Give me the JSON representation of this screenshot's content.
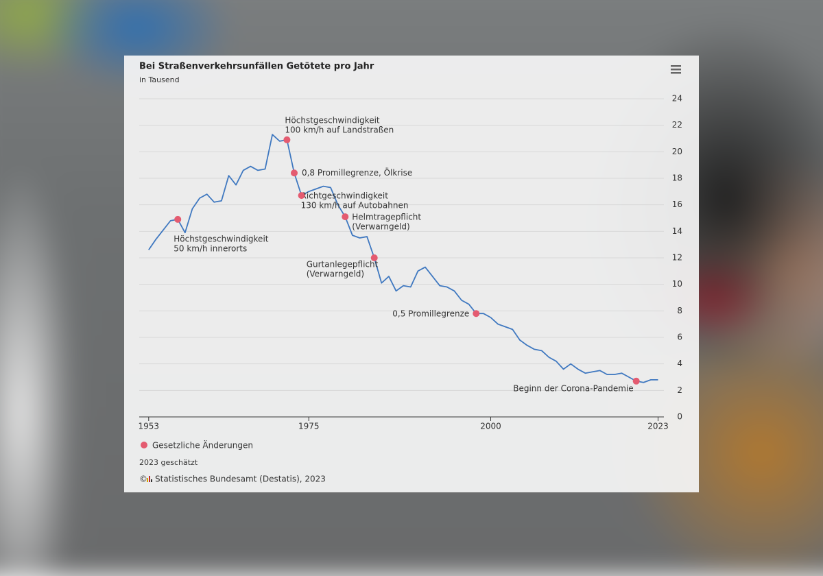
{
  "chart_data": {
    "type": "line",
    "title": "Bei Straßenverkehrsunfällen Getötete pro Jahr",
    "subtitle": "in Tausend",
    "xlim": [
      1951.7,
      2023.8
    ],
    "xticks": [
      1953,
      1975,
      2000,
      2023
    ],
    "ylim": [
      0,
      24
    ],
    "yticks": [
      0,
      2,
      4,
      6,
      8,
      10,
      12,
      14,
      16,
      18,
      20,
      22,
      24
    ],
    "grid": true,
    "series": [
      {
        "color": "#3f78c0",
        "x": [
          1953,
          1954,
          1955,
          1956,
          1957,
          1958,
          1959,
          1960,
          1961,
          1962,
          1963,
          1964,
          1965,
          1966,
          1967,
          1968,
          1969,
          1970,
          1971,
          1972,
          1973,
          1974,
          1975,
          1976,
          1977,
          1978,
          1979,
          1980,
          1981,
          1982,
          1983,
          1984,
          1985,
          1986,
          1987,
          1988,
          1989,
          1990,
          1991,
          1992,
          1993,
          1994,
          1995,
          1996,
          1997,
          1998,
          1999,
          2000,
          2001,
          2002,
          2003,
          2004,
          2005,
          2006,
          2007,
          2008,
          2009,
          2010,
          2011,
          2012,
          2013,
          2014,
          2015,
          2016,
          2017,
          2018,
          2019,
          2020,
          2021,
          2022,
          2023
        ],
        "values": [
          12.6,
          13.4,
          14.1,
          14.8,
          14.9,
          13.9,
          15.7,
          16.5,
          16.8,
          16.2,
          16.3,
          18.2,
          17.5,
          18.6,
          18.9,
          18.6,
          18.7,
          21.3,
          20.8,
          20.9,
          18.4,
          16.7,
          17.0,
          17.2,
          17.4,
          17.3,
          16.0,
          15.1,
          13.7,
          13.5,
          13.6,
          12.0,
          10.1,
          10.6,
          9.5,
          9.9,
          9.8,
          11.0,
          11.3,
          10.6,
          9.9,
          9.8,
          9.5,
          8.8,
          8.5,
          7.8,
          7.8,
          7.5,
          7.0,
          6.8,
          6.6,
          5.8,
          5.4,
          5.1,
          5.0,
          4.5,
          4.2,
          3.6,
          4.0,
          3.6,
          3.3,
          3.4,
          3.5,
          3.2,
          3.2,
          3.3,
          3.0,
          2.7,
          2.6,
          2.8,
          2.8
        ]
      },
      {
        "name": "Gesetzliche Änderungen",
        "color": "#e45b70",
        "x": [
          1957,
          1972,
          1973,
          1974,
          1980,
          1984,
          1998,
          2020
        ],
        "values": [
          14.9,
          20.9,
          18.4,
          16.7,
          15.1,
          12.0,
          7.8,
          2.7
        ],
        "labels": [
          [
            "Höchstgeschwindigkeit",
            "50 km/h innerorts"
          ],
          [
            "Höchstgeschwindigkeit",
            "100 km/h auf Landstraßen"
          ],
          [
            "0,8 Promillegrenze, Ölkrise"
          ],
          [
            "Richtgeschwindigkeit",
            "130 km/h auf Autobahnen"
          ],
          [
            "Helmtragepflicht",
            "(Verwarngeld)"
          ],
          [
            "Gurtanlegepflicht",
            "(Verwarngeld)"
          ],
          [
            "0,5 Promillegrenze"
          ],
          [
            "Beginn der Corona-Pandemie"
          ]
        ]
      }
    ],
    "note": "2023 geschätzt",
    "copyright": "©",
    "source": "Statistisches Bundesamt (Destatis), 2023"
  }
}
